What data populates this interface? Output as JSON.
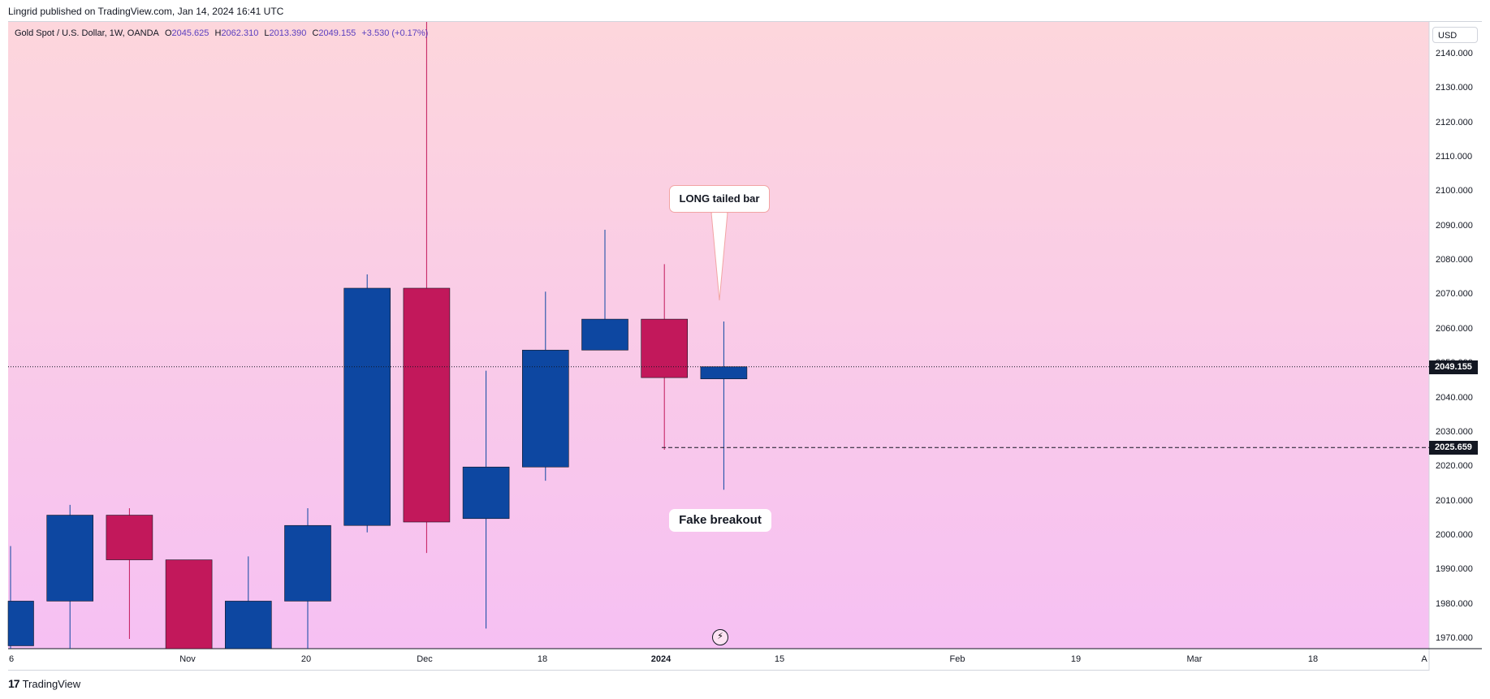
{
  "publisher_line": "Lingrid published on TradingView.com, Jan 14, 2024 16:41 UTC",
  "legend": {
    "symbol": "Gold Spot / U.S. Dollar, 1W, OANDA",
    "open_label": "O",
    "open": "2045.625",
    "high_label": "H",
    "high": "2062.310",
    "low_label": "L",
    "low": "2013.390",
    "close_label": "C",
    "close": "2049.155",
    "change": "+3.530 (+0.17%)"
  },
  "currency": "USD",
  "footer": {
    "logo_mark": "17",
    "brand": "TradingView"
  },
  "annotations": {
    "long_tail": "LONG tailed bar",
    "fake_breakout": "Fake breakout"
  },
  "colors": {
    "bg_top": "#fdd6dc",
    "bg_bottom": "#f6c0f3",
    "up_candle": "#0d47a1",
    "down_candle": "#c2185b",
    "text": "#131722"
  },
  "icons": {
    "bolt": "lightning-bolt-icon"
  },
  "chart_data": {
    "type": "candlestick",
    "title": "Gold Spot / U.S. Dollar, 1W, OANDA",
    "ylim": [
      1967,
      2150
    ],
    "y_ticks": [
      "2140.000",
      "2130.000",
      "2120.000",
      "2110.000",
      "2100.000",
      "2090.000",
      "2080.000",
      "2070.000",
      "2060.000",
      "2050.000",
      "2040.000",
      "2030.000",
      "2020.000",
      "2010.000",
      "2000.000",
      "1990.000",
      "1980.000",
      "1970.000"
    ],
    "x_ticks": [
      "6",
      "Nov",
      "20",
      "Dec",
      "18",
      "2024",
      "15",
      "Feb",
      "19",
      "Mar",
      "18",
      "A"
    ],
    "candles": [
      {
        "open": 1968,
        "high": 1997,
        "low": 1962,
        "close": 1981
      },
      {
        "open": 1981,
        "high": 2009,
        "low": 1962,
        "close": 2006
      },
      {
        "open": 2006,
        "high": 2008,
        "low": 1970,
        "close": 1993
      },
      {
        "open": 1993,
        "high": 1993,
        "low": 1965,
        "close": 1965
      },
      {
        "open": 1967,
        "high": 1994,
        "low": 1962,
        "close": 1981
      },
      {
        "open": 1981,
        "high": 2008,
        "low": 1962,
        "close": 2003
      },
      {
        "open": 2003,
        "high": 2076,
        "low": 2001,
        "close": 2072
      },
      {
        "open": 2072,
        "high": 2150,
        "low": 1995,
        "close": 2004
      },
      {
        "open": 2005,
        "high": 2048,
        "low": 1973,
        "close": 2020
      },
      {
        "open": 2020,
        "high": 2071,
        "low": 2016,
        "close": 2054
      },
      {
        "open": 2054,
        "high": 2089,
        "low": 2054,
        "close": 2063
      },
      {
        "open": 2063,
        "high": 2079,
        "low": 2025,
        "close": 2046
      },
      {
        "open": 2045.625,
        "high": 2062.31,
        "low": 2013.39,
        "close": 2049.155
      }
    ],
    "price_lines": [
      {
        "label": "2049.155",
        "value": 2049.155,
        "style": "dotted"
      },
      {
        "label": "2025.659",
        "value": 2025.659,
        "style": "dashed"
      }
    ]
  }
}
